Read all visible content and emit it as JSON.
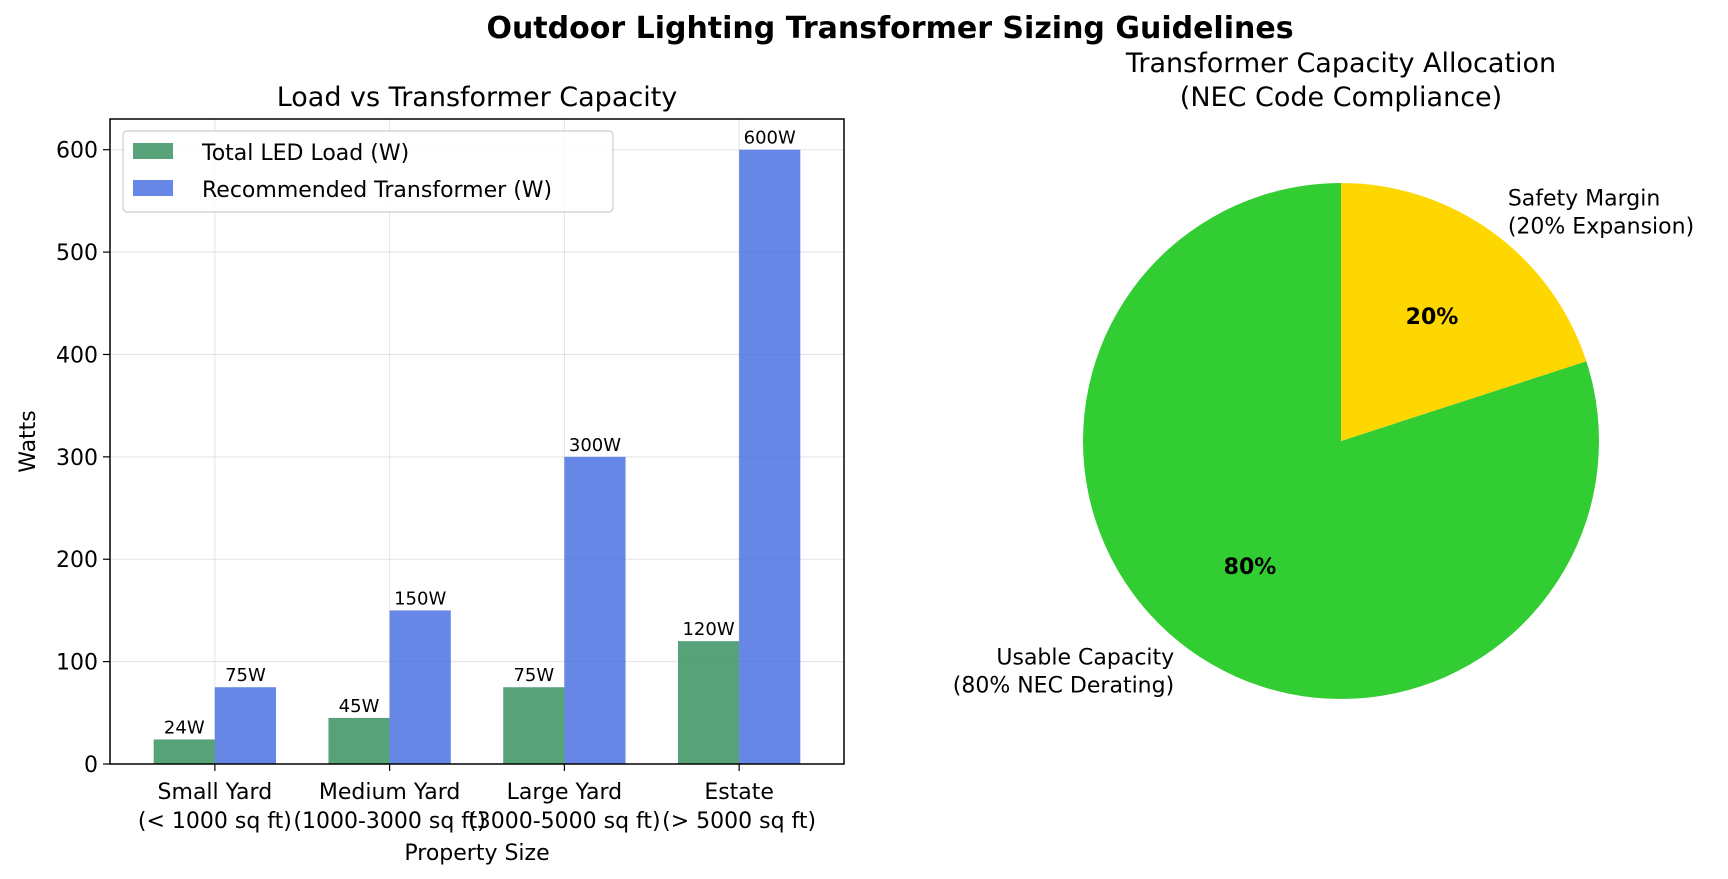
{
  "figure": {
    "title": "Outdoor Lighting Transformer Sizing Guidelines"
  },
  "chart_data": [
    {
      "type": "bar",
      "title": "Load vs Transformer Capacity",
      "xlabel": "Property Size",
      "ylabel": "Watts",
      "ylim": [
        0,
        630
      ],
      "yticks": [
        0,
        100,
        200,
        300,
        400,
        500,
        600
      ],
      "grid": true,
      "legend_position": "top-left",
      "categories": [
        [
          "Small Yard",
          "(< 1000 sq ft)"
        ],
        [
          "Medium Yard",
          "(1000-3000 sq ft)"
        ],
        [
          "Large Yard",
          "(3000-5000 sq ft)"
        ],
        [
          "Estate",
          "(> 5000 sq ft)"
        ]
      ],
      "series": [
        {
          "name": "Total LED Load (W)",
          "color": "#2E8B57",
          "values": [
            24,
            45,
            75,
            120
          ],
          "labels": [
            "24W",
            "45W",
            "75W",
            "120W"
          ]
        },
        {
          "name": "Recommended Transformer (W)",
          "color": "#4169E1",
          "values": [
            75,
            150,
            300,
            600
          ],
          "labels": [
            "75W",
            "150W",
            "300W",
            "600W"
          ]
        }
      ]
    },
    {
      "type": "pie",
      "title": [
        "Transformer Capacity Allocation",
        "(NEC Code Compliance)"
      ],
      "slices": [
        {
          "label": [
            "Usable Capacity",
            "(80% NEC Derating)"
          ],
          "value": 80,
          "pct_label": "80%",
          "color": "#32CD32"
        },
        {
          "label": [
            "Safety Margin",
            "(20% Expansion)"
          ],
          "value": 20,
          "pct_label": "20%",
          "color": "#FFD700"
        }
      ]
    }
  ]
}
